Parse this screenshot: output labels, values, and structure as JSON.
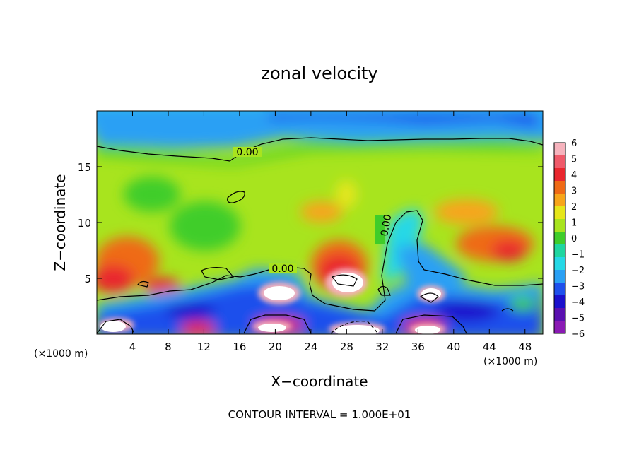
{
  "chart_data": {
    "type": "heatmap",
    "title": "zonal velocity",
    "xlabel": "X−coordinate",
    "ylabel": "Z−coordinate",
    "x_unit_label": "(×1000 m)",
    "footer": "CONTOUR INTERVAL = 1.000E+01",
    "xlim": [
      0,
      50
    ],
    "ylim": [
      0,
      20
    ],
    "x_ticks": [
      "4",
      "8",
      "12",
      "16",
      "20",
      "24",
      "28",
      "32",
      "36",
      "40",
      "44",
      "48"
    ],
    "x_tick_values": [
      4,
      8,
      12,
      16,
      20,
      24,
      28,
      32,
      36,
      40,
      44,
      48
    ],
    "y_ticks": [
      "5",
      "10",
      "15"
    ],
    "y_tick_values": [
      5,
      10,
      15
    ],
    "colorbar": {
      "ticks": [
        "6",
        "5",
        "4",
        "3",
        "2",
        "1",
        "0",
        "−1",
        "−2",
        "−3",
        "−4",
        "−5",
        "−6"
      ],
      "colors": [
        "#f6b3bd",
        "#ef5a6a",
        "#e9262e",
        "#ef6a16",
        "#f7a51a",
        "#e6e61a",
        "#a8e41e",
        "#3fcd2a",
        "#1fd6a0",
        "#25d8e6",
        "#2aa0f4",
        "#1e50ec",
        "#1a10cc",
        "#5a10b0",
        "#8a1ab4"
      ]
    },
    "contour_labels": [
      "0.00",
      "0.00",
      "0.00"
    ],
    "grid": false
  }
}
